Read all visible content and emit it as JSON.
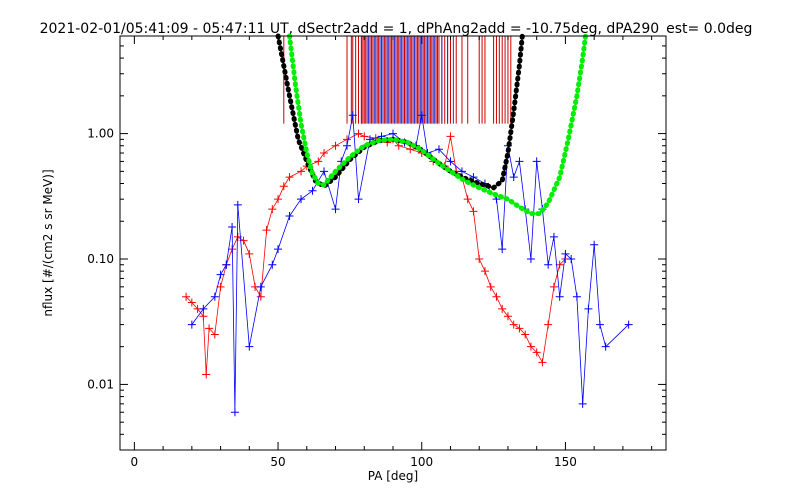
{
  "chart_data": {
    "type": "scatter",
    "title": "2021-02-01/05:41:09 - 05:47:11 UT, dSectr2add = 1, dPhAng2add = -10.75deg, dPA290_est=    0.0deg",
    "xlabel": "PA [deg]",
    "ylabel": "nflux [#/(cm2 s sr MeV)]",
    "xlim": [
      -5,
      185
    ],
    "ylim": [
      0.003,
      6.0
    ],
    "y_scale": "log",
    "x_ticks": [
      0,
      50,
      100,
      150
    ],
    "x_tick_labels": [
      "0",
      "50",
      "100",
      "150"
    ],
    "y_ticks": [
      0.01,
      0.1,
      1.0
    ],
    "y_tick_labels": [
      "0.01",
      "0.10",
      "1.00"
    ],
    "grid": false,
    "legend": "none",
    "colors": {
      "red_series": "#ff0000",
      "blue_series": "#0000ff",
      "fit_black": "#000000",
      "fit_green": "#00ee00",
      "vline_red": "#cc0000",
      "vline_blue": "#2a2ad0"
    },
    "series": [
      {
        "color": "red",
        "points": [
          [
            18,
            0.05
          ],
          [
            20,
            0.045
          ],
          [
            22,
            0.04
          ],
          [
            24,
            0.035
          ],
          [
            25,
            0.012
          ],
          [
            26,
            0.028
          ],
          [
            28,
            0.025
          ],
          [
            30,
            0.06
          ],
          [
            32,
            0.09
          ],
          [
            34,
            0.12
          ],
          [
            36,
            0.15
          ],
          [
            38,
            0.14
          ],
          [
            40,
            0.11
          ],
          [
            42,
            0.06
          ],
          [
            44,
            0.05
          ],
          [
            46,
            0.17
          ],
          [
            48,
            0.25
          ],
          [
            50,
            0.3
          ],
          [
            52,
            0.38
          ],
          [
            54,
            0.45
          ],
          [
            58,
            0.5
          ],
          [
            60,
            0.55
          ],
          [
            64,
            0.6
          ],
          [
            66,
            0.7
          ],
          [
            70,
            0.8
          ],
          [
            74,
            0.9
          ],
          [
            78,
            1.0
          ],
          [
            80,
            0.95
          ],
          [
            84,
            0.92
          ],
          [
            88,
            0.85
          ],
          [
            90,
            0.9
          ],
          [
            92,
            0.8
          ],
          [
            96,
            0.75
          ],
          [
            100,
            0.7
          ],
          [
            104,
            0.6
          ],
          [
            108,
            0.55
          ],
          [
            110,
            0.95
          ],
          [
            112,
            0.5
          ],
          [
            114,
            0.45
          ],
          [
            116,
            0.3
          ],
          [
            118,
            0.24
          ],
          [
            120,
            0.1
          ],
          [
            122,
            0.08
          ],
          [
            124,
            0.06
          ],
          [
            126,
            0.05
          ],
          [
            128,
            0.04
          ],
          [
            130,
            0.035
          ],
          [
            132,
            0.03
          ],
          [
            134,
            0.028
          ],
          [
            136,
            0.025
          ],
          [
            138,
            0.02
          ],
          [
            140,
            0.018
          ],
          [
            142,
            0.015
          ],
          [
            144,
            0.03
          ],
          [
            146,
            0.06
          ],
          [
            148,
            0.09
          ],
          [
            150,
            0.1
          ]
        ]
      },
      {
        "color": "blue",
        "points": [
          [
            20,
            0.03
          ],
          [
            24,
            0.04
          ],
          [
            28,
            0.05
          ],
          [
            30,
            0.075
          ],
          [
            32,
            0.09
          ],
          [
            34,
            0.18
          ],
          [
            35,
            0.006
          ],
          [
            36,
            0.27
          ],
          [
            40,
            0.02
          ],
          [
            44,
            0.06
          ],
          [
            48,
            0.09
          ],
          [
            50,
            0.12
          ],
          [
            54,
            0.22
          ],
          [
            58,
            0.3
          ],
          [
            62,
            0.35
          ],
          [
            66,
            0.5
          ],
          [
            70,
            0.25
          ],
          [
            72,
            0.6
          ],
          [
            74,
            0.8
          ],
          [
            76,
            1.4
          ],
          [
            78,
            0.3
          ],
          [
            82,
            0.9
          ],
          [
            86,
            0.95
          ],
          [
            90,
            1.0
          ],
          [
            94,
            0.85
          ],
          [
            98,
            0.8
          ],
          [
            100,
            1.4
          ],
          [
            102,
            0.7
          ],
          [
            106,
            0.75
          ],
          [
            110,
            0.6
          ],
          [
            114,
            0.5
          ],
          [
            118,
            0.45
          ],
          [
            122,
            0.4
          ],
          [
            126,
            0.3
          ],
          [
            128,
            0.12
          ],
          [
            130,
            0.8
          ],
          [
            132,
            0.45
          ],
          [
            134,
            0.6
          ],
          [
            136,
            0.25
          ],
          [
            138,
            0.1
          ],
          [
            140,
            0.6
          ],
          [
            142,
            0.25
          ],
          [
            144,
            0.09
          ],
          [
            146,
            0.15
          ],
          [
            148,
            0.05
          ],
          [
            150,
            0.11
          ],
          [
            152,
            0.1
          ],
          [
            154,
            0.05
          ],
          [
            156,
            0.007
          ],
          [
            158,
            0.04
          ],
          [
            160,
            0.13
          ],
          [
            162,
            0.03
          ],
          [
            164,
            0.02
          ],
          [
            172,
            0.03
          ]
        ]
      }
    ],
    "fit_curves": [
      {
        "color": "black",
        "points": [
          [
            50,
            6.0
          ],
          [
            54,
            2.0
          ],
          [
            57,
            0.9
          ],
          [
            60,
            0.6
          ],
          [
            63,
            0.42
          ],
          [
            66,
            0.38
          ],
          [
            70,
            0.45
          ],
          [
            75,
            0.62
          ],
          [
            80,
            0.78
          ],
          [
            85,
            0.88
          ],
          [
            90,
            0.9
          ],
          [
            95,
            0.85
          ],
          [
            100,
            0.74
          ],
          [
            105,
            0.6
          ],
          [
            110,
            0.5
          ],
          [
            115,
            0.44
          ],
          [
            120,
            0.4
          ],
          [
            125,
            0.37
          ],
          [
            128,
            0.42
          ],
          [
            130,
            0.7
          ],
          [
            132,
            1.5
          ],
          [
            134,
            3.5
          ],
          [
            135,
            6.0
          ]
        ]
      },
      {
        "color": "green",
        "points": [
          [
            54,
            6.0
          ],
          [
            56,
            2.5
          ],
          [
            58,
            1.2
          ],
          [
            60,
            0.7
          ],
          [
            62,
            0.48
          ],
          [
            64,
            0.4
          ],
          [
            66,
            0.39
          ],
          [
            70,
            0.5
          ],
          [
            75,
            0.65
          ],
          [
            80,
            0.8
          ],
          [
            85,
            0.88
          ],
          [
            90,
            0.9
          ],
          [
            95,
            0.85
          ],
          [
            100,
            0.74
          ],
          [
            105,
            0.6
          ],
          [
            110,
            0.5
          ],
          [
            115,
            0.42
          ],
          [
            120,
            0.37
          ],
          [
            125,
            0.33
          ],
          [
            130,
            0.3
          ],
          [
            134,
            0.26
          ],
          [
            138,
            0.23
          ],
          [
            141,
            0.23
          ],
          [
            144,
            0.28
          ],
          [
            148,
            0.45
          ],
          [
            151,
            0.9
          ],
          [
            154,
            2.0
          ],
          [
            156,
            4.0
          ],
          [
            157,
            6.0
          ]
        ]
      }
    ],
    "vertical_lines": {
      "y_from": 1.2,
      "y_to": 6.0,
      "red_x": [
        52,
        74,
        75.5,
        76,
        77,
        78,
        79,
        79.5,
        80,
        81,
        82,
        83,
        84,
        85,
        86,
        87,
        88,
        89,
        90,
        91,
        92,
        93,
        94,
        95,
        96,
        97,
        98,
        99,
        100,
        101,
        102,
        103,
        104,
        105,
        106,
        107,
        108,
        109,
        110,
        112,
        114,
        116,
        120,
        121,
        122,
        125,
        126,
        127,
        128,
        129,
        130,
        131
      ],
      "blue_x": [
        79,
        80.5,
        81.5,
        82.5,
        83.5,
        84.5,
        85.5,
        86.5,
        87.5,
        88.5,
        89.5,
        90.5,
        91.5,
        92.5,
        93.5,
        94.5,
        95.5,
        96.5,
        97.5,
        98.5,
        99.5,
        100.5,
        101.5,
        102.5,
        103.5,
        104.5,
        105.5,
        107,
        109,
        111
      ]
    }
  }
}
